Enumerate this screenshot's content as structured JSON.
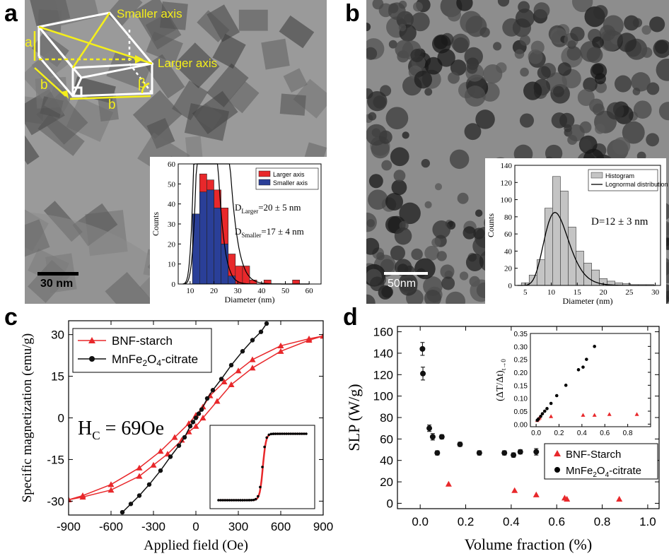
{
  "panels": {
    "a": {
      "label": "a",
      "scalebar": "30 nm",
      "annotations": {
        "smaller_axis": "Smaller axis",
        "larger_axis": "Larger axis",
        "a_edge": "a",
        "b_edge_left": "b",
        "b_edge_bottom": "b",
        "angle": "β"
      }
    },
    "b": {
      "label": "b",
      "scalebar": "50nm"
    },
    "c": {
      "label": "c"
    },
    "d": {
      "label": "d"
    }
  },
  "chart_data": [
    {
      "id": "a-inset",
      "type": "bar",
      "xlabel": "Diameter (nm)",
      "ylabel": "Counts",
      "xlim": [
        5,
        65
      ],
      "ylim": [
        0,
        60
      ],
      "xticks": [
        10,
        20,
        30,
        40,
        50,
        60
      ],
      "yticks": [
        0,
        10,
        20,
        30,
        40,
        50,
        60
      ],
      "legend": [
        "Larger axis",
        "Smaller axis"
      ],
      "annotations": [
        "D",
        "Larger",
        "=20 ± 5 nm",
        "D",
        "Smaller",
        "=17 ± 4 nm"
      ],
      "bin_width": 3,
      "series": [
        {
          "name": "Larger axis",
          "color": "#e8282b",
          "centers": [
            12.5,
            15.5,
            18.5,
            21.5,
            24.5,
            27.5,
            30.5,
            33.5,
            36.5,
            42.5,
            54.5
          ],
          "values": [
            22,
            55,
            52,
            47,
            38,
            15,
            9,
            9,
            2,
            2,
            2
          ]
        },
        {
          "name": "Smaller axis",
          "color": "#2a3f98",
          "centers": [
            12.5,
            15.5,
            18.5,
            21.5,
            24.5,
            27.5
          ],
          "values": [
            35,
            46,
            47,
            38,
            20,
            4
          ]
        }
      ],
      "fit_curves": [
        {
          "mu": 2.96,
          "sigma": 0.22,
          "scale": 2640
        },
        {
          "mu": 2.8,
          "sigma": 0.2,
          "scale": 1700
        }
      ]
    },
    {
      "id": "b-inset",
      "type": "bar",
      "xlabel": "Diameter (nm)",
      "ylabel": "Counts",
      "xlim": [
        3,
        31
      ],
      "ylim": [
        0,
        140
      ],
      "xticks": [
        5,
        10,
        15,
        20,
        25,
        30
      ],
      "yticks": [
        0,
        20,
        40,
        60,
        80,
        100,
        120,
        140
      ],
      "legend": [
        "Histogram",
        "Lognormal distribution"
      ],
      "annotation": "D=12 ± 3 nm",
      "bin_width": 1.5,
      "centers": [
        5.0,
        6.5,
        8.0,
        9.5,
        11.0,
        12.5,
        14.0,
        15.5,
        17.0,
        18.5,
        20.0,
        21.5,
        23.0,
        24.5,
        26.0,
        27.5,
        29.0
      ],
      "values": [
        3,
        12,
        30,
        90,
        127,
        110,
        68,
        40,
        26,
        18,
        8,
        5,
        3,
        2,
        1,
        1,
        1
      ],
      "fit": {
        "mu": 2.42,
        "sigma": 0.22,
        "scale": 515
      }
    },
    {
      "id": "c",
      "type": "line",
      "xlabel": "Applied field (Oe)",
      "ylabel": "Specific magnetization (emu/g)",
      "xlim": [
        -900,
        900
      ],
      "ylim": [
        -35,
        35
      ],
      "xticks": [
        -900,
        -600,
        -300,
        0,
        300,
        600,
        900
      ],
      "yticks": [
        -30,
        -15,
        0,
        15,
        30
      ],
      "annotation": {
        "H": "H",
        "sub": "C",
        "rest": " = 69Oe"
      },
      "series": [
        {
          "name": "BNF-starch",
          "color": "#e8282b",
          "marker": "triangle",
          "upper": {
            "x": [
              -900,
              -800,
              -600,
              -400,
              -250,
              -150,
              -50,
              0,
              50,
              100,
              200,
              300,
              400,
              600,
              800,
              900
            ],
            "y": [
              -29.5,
              -28,
              -24,
              -18,
              -12,
              -7,
              -2,
              1,
              4,
              8,
              13,
              17,
              21,
              26,
              28.5,
              29.5
            ]
          },
          "lower": {
            "x": [
              -900,
              -800,
              -600,
              -400,
              -300,
              -200,
              -100,
              -50,
              0,
              50,
              150,
              250,
              400,
              600,
              800,
              900
            ],
            "y": [
              -29.5,
              -28.5,
              -26,
              -21,
              -17,
              -13,
              -8,
              -5,
              -3,
              0,
              6,
              12,
              18,
              24,
              28,
              29.5
            ]
          }
        },
        {
          "name": "MnFe2O4-citrate",
          "color": "#111111",
          "marker": "circle",
          "x": [
            -520,
            -460,
            -400,
            -330,
            -250,
            -180,
            -120,
            -80,
            -40,
            -20,
            0,
            20,
            40,
            80,
            120,
            180,
            250,
            330,
            400,
            460,
            500
          ],
          "y": [
            -34,
            -31,
            -28,
            -24,
            -19,
            -14,
            -10,
            -7,
            -3,
            -1.5,
            0,
            1.5,
            3,
            7,
            10,
            14,
            19,
            24,
            28,
            31,
            34
          ]
        }
      ],
      "legend_labels": {
        "bnf": "BNF-starch",
        "mn_main": "MnFe",
        "mn_sub": "2",
        "mn_rest": "O",
        "mn_sub2": "4",
        "mn_tail": "-citrate"
      }
    },
    {
      "id": "d",
      "type": "scatter",
      "xlabel": "Volume fraction (%)",
      "ylabel": "SLP (W/g)",
      "xlim": [
        -0.1,
        1.05
      ],
      "ylim": [
        -5,
        165
      ],
      "xticks": [
        0.0,
        0.2,
        0.4,
        0.6,
        0.8,
        1.0
      ],
      "yticks": [
        0,
        20,
        40,
        60,
        80,
        100,
        120,
        140,
        160
      ],
      "series": [
        {
          "name": "BNF-Starch",
          "color": "#e8282b",
          "marker": "triangle",
          "x": [
            0.125,
            0.415,
            0.51,
            0.635,
            0.645,
            0.875
          ],
          "y": [
            18,
            12,
            8,
            5,
            4,
            4
          ]
        },
        {
          "name": "MnFe2O4-citrate",
          "color": "#111111",
          "marker": "circle",
          "x": [
            0.01,
            0.012,
            0.04,
            0.055,
            0.075,
            0.095,
            0.175,
            0.26,
            0.37,
            0.41,
            0.44,
            0.51
          ],
          "y": [
            144,
            121,
            70,
            62,
            47,
            62,
            55,
            47,
            47,
            45,
            48,
            48
          ],
          "err": [
            6,
            6,
            3,
            3,
            2,
            2,
            2,
            2,
            2,
            2,
            2,
            3
          ]
        }
      ],
      "legend_labels": {
        "bnf": "BNF-Starch",
        "mn_main": "MnFe",
        "mn_sub": "2",
        "mn_rest": "O",
        "mn_sub2": "4",
        "mn_tail": "-citrate"
      },
      "inset": {
        "ylabel_main": "(ΔT/Δt)",
        "ylabel_sub": "t→0",
        "xlim": [
          -0.05,
          1.0
        ],
        "ylim": [
          -0.01,
          0.35
        ],
        "xticks": [
          0.0,
          0.2,
          0.4,
          0.6,
          0.8
        ],
        "yticks": [
          0.0,
          0.05,
          0.1,
          0.15,
          0.2,
          0.25,
          0.3,
          0.35
        ],
        "red": {
          "x": [
            0.01,
            0.02,
            0.03,
            0.13,
            0.41,
            0.51,
            0.64,
            0.88
          ],
          "y": [
            0.015,
            0.02,
            0.025,
            0.03,
            0.035,
            0.035,
            0.038,
            0.038
          ]
        },
        "black": {
          "x": [
            0.01,
            0.02,
            0.04,
            0.055,
            0.075,
            0.095,
            0.13,
            0.18,
            0.26,
            0.37,
            0.41,
            0.44,
            0.51
          ],
          "y": [
            0.015,
            0.02,
            0.03,
            0.04,
            0.05,
            0.06,
            0.08,
            0.11,
            0.15,
            0.21,
            0.22,
            0.25,
            0.3
          ]
        }
      }
    }
  ]
}
